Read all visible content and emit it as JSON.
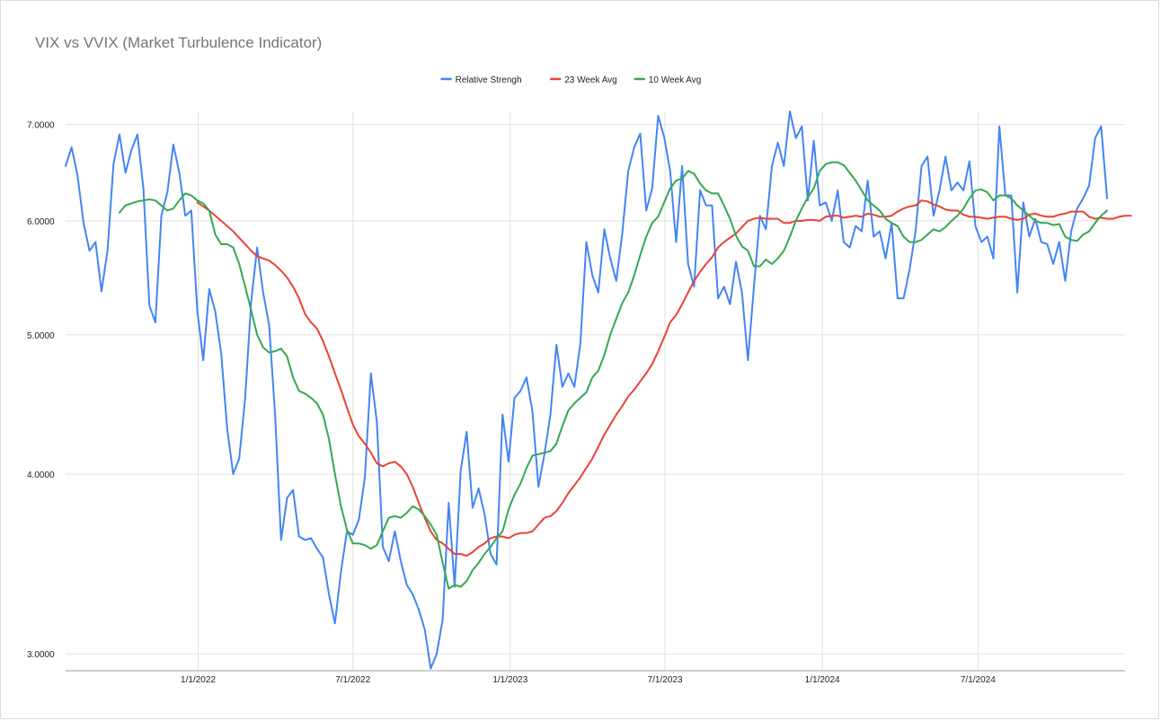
{
  "chart_data": {
    "type": "line",
    "title": "VIX vs VVIX (Market Turbulence Indicator)",
    "xlabel": "",
    "ylabel": "",
    "y_scale": "log",
    "ylim": [
      2.92,
      7.15
    ],
    "y_ticks": [
      {
        "value": 3.0,
        "label": "3.0000"
      },
      {
        "value": 4.0,
        "label": "4.0000"
      },
      {
        "value": 5.0,
        "label": "5.0000"
      },
      {
        "value": 6.0,
        "label": "6.0000"
      },
      {
        "value": 7.0,
        "label": "7.0000"
      }
    ],
    "x_ticks": [
      {
        "date": "2022-01-01",
        "label": "1/1/2022"
      },
      {
        "date": "2022-07-01",
        "label": "7/1/2022"
      },
      {
        "date": "2023-01-01",
        "label": "1/1/2023"
      },
      {
        "date": "2023-07-01",
        "label": "7/1/2023"
      },
      {
        "date": "2024-01-01",
        "label": "1/1/2024"
      },
      {
        "date": "2024-07-01",
        "label": "7/1/2024"
      }
    ],
    "x_range": [
      "2021-07-30",
      "2024-12-20"
    ],
    "grid": true,
    "legend_position": "top",
    "series": [
      {
        "name": "Relative Strengh",
        "color": "#4285f4",
        "start_date": "2021-07-30",
        "values": [
          6.55,
          6.75,
          6.45,
          5.98,
          5.72,
          5.8,
          5.36,
          5.72,
          6.57,
          6.89,
          6.48,
          6.72,
          6.89,
          6.32,
          5.24,
          5.1,
          6.05,
          6.28,
          6.78,
          6.48,
          6.05,
          6.1,
          5.2,
          4.8,
          5.38,
          5.19,
          4.85,
          4.3,
          4.0,
          4.1,
          4.52,
          5.27,
          5.75,
          5.35,
          5.08,
          4.4,
          3.6,
          3.85,
          3.9,
          3.62,
          3.6,
          3.61,
          3.55,
          3.5,
          3.3,
          3.15,
          3.42,
          3.65,
          3.63,
          3.72,
          3.98,
          4.7,
          4.35,
          3.56,
          3.48,
          3.65,
          3.48,
          3.35,
          3.3,
          3.22,
          3.12,
          2.93,
          3.0,
          3.17,
          3.82,
          3.34,
          4.02,
          4.28,
          3.79,
          3.91,
          3.75,
          3.52,
          3.46,
          4.4,
          4.08,
          4.52,
          4.57,
          4.67,
          4.42,
          3.92,
          4.13,
          4.4,
          4.92,
          4.6,
          4.7,
          4.6,
          4.93,
          5.8,
          5.5,
          5.35,
          5.92,
          5.65,
          5.45,
          5.88,
          6.5,
          6.75,
          6.9,
          6.1,
          6.32,
          7.1,
          6.86,
          6.5,
          5.8,
          6.55,
          5.6,
          5.4,
          6.3,
          6.15,
          6.15,
          5.3,
          5.4,
          5.25,
          5.62,
          5.35,
          4.8,
          5.4,
          6.05,
          5.92,
          6.55,
          6.8,
          6.55,
          7.15,
          6.85,
          6.98,
          6.2,
          6.82,
          6.15,
          6.18,
          6.0,
          6.3,
          5.8,
          5.75,
          5.95,
          5.9,
          6.4,
          5.85,
          5.9,
          5.65,
          5.98,
          5.3,
          5.3,
          5.55,
          5.9,
          6.55,
          6.65,
          6.05,
          6.3,
          6.65,
          6.3,
          6.38,
          6.3,
          6.6,
          5.95,
          5.8,
          5.85,
          5.65,
          6.98,
          6.25,
          6.25,
          5.35,
          6.18,
          5.85,
          6.02,
          5.8,
          5.78,
          5.6,
          5.8,
          5.45,
          5.9,
          6.12,
          6.22,
          6.35,
          6.85,
          6.98,
          6.22
        ]
      },
      {
        "name": "23 Week Avg",
        "color": "#ea4335",
        "start_date": "2021-12-31",
        "values": [
          6.18,
          6.14,
          6.1,
          6.05,
          6.0,
          5.95,
          5.9,
          5.84,
          5.78,
          5.72,
          5.67,
          5.65,
          5.63,
          5.59,
          5.54,
          5.48,
          5.4,
          5.3,
          5.17,
          5.1,
          5.05,
          4.95,
          4.83,
          4.7,
          4.58,
          4.45,
          4.33,
          4.25,
          4.2,
          4.14,
          4.07,
          4.05,
          4.07,
          4.08,
          4.05,
          4.0,
          3.92,
          3.82,
          3.73,
          3.65,
          3.6,
          3.58,
          3.55,
          3.52,
          3.52,
          3.51,
          3.53,
          3.56,
          3.58,
          3.61,
          3.62,
          3.62,
          3.61,
          3.63,
          3.64,
          3.64,
          3.65,
          3.69,
          3.73,
          3.74,
          3.77,
          3.82,
          3.88,
          3.93,
          3.98,
          4.04,
          4.1,
          4.18,
          4.26,
          4.33,
          4.4,
          4.46,
          4.53,
          4.58,
          4.64,
          4.7,
          4.77,
          4.87,
          4.98,
          5.1,
          5.16,
          5.25,
          5.35,
          5.45,
          5.53,
          5.6,
          5.66,
          5.75,
          5.8,
          5.84,
          5.88,
          5.94,
          6.0,
          6.02,
          6.03,
          6.02,
          6.02,
          6.02,
          5.98,
          5.98,
          6.0,
          6.0,
          6.01,
          6.01,
          6.0,
          6.04,
          6.05,
          6.05,
          6.03,
          6.04,
          6.05,
          6.04,
          6.07,
          6.06,
          6.04,
          6.04,
          6.05,
          6.09,
          6.12,
          6.14,
          6.15,
          6.2,
          6.19,
          6.16,
          6.14,
          6.11,
          6.1,
          6.1,
          6.06,
          6.04,
          6.04,
          6.03,
          6.02,
          6.03,
          6.04,
          6.04,
          6.02,
          6.01,
          6.02,
          6.06,
          6.07,
          6.05,
          6.04,
          6.04,
          6.06,
          6.07,
          6.09,
          6.09,
          6.09,
          6.04,
          6.02,
          6.03,
          6.02,
          6.02,
          6.04,
          6.05,
          6.05
        ]
      },
      {
        "name": "10 Week Avg",
        "color": "#34a853",
        "start_date": "2021-10-01",
        "values": [
          6.08,
          6.15,
          6.17,
          6.19,
          6.2,
          6.21,
          6.2,
          6.15,
          6.1,
          6.12,
          6.2,
          6.27,
          6.25,
          6.2,
          6.17,
          6.1,
          5.87,
          5.78,
          5.78,
          5.75,
          5.6,
          5.4,
          5.2,
          5.0,
          4.9,
          4.86,
          4.87,
          4.89,
          4.83,
          4.67,
          4.57,
          4.55,
          4.52,
          4.48,
          4.4,
          4.23,
          4.0,
          3.8,
          3.66,
          3.58,
          3.58,
          3.57,
          3.55,
          3.57,
          3.65,
          3.73,
          3.74,
          3.73,
          3.76,
          3.8,
          3.78,
          3.74,
          3.69,
          3.63,
          3.47,
          3.33,
          3.35,
          3.34,
          3.37,
          3.43,
          3.47,
          3.52,
          3.56,
          3.61,
          3.65,
          3.78,
          3.87,
          3.94,
          4.04,
          4.12,
          4.13,
          4.14,
          4.15,
          4.2,
          4.32,
          4.43,
          4.48,
          4.52,
          4.56,
          4.67,
          4.72,
          4.84,
          5.0,
          5.13,
          5.26,
          5.35,
          5.5,
          5.68,
          5.85,
          5.98,
          6.04,
          6.18,
          6.32,
          6.4,
          6.42,
          6.5,
          6.47,
          6.37,
          6.3,
          6.27,
          6.27,
          6.15,
          6.02,
          5.86,
          5.76,
          5.72,
          5.58,
          5.58,
          5.64,
          5.6,
          5.65,
          5.72,
          5.85,
          6.0,
          6.12,
          6.23,
          6.32,
          6.5,
          6.57,
          6.59,
          6.59,
          6.56,
          6.48,
          6.4,
          6.3,
          6.2,
          6.15,
          6.1,
          6.02,
          5.98,
          5.95,
          5.85,
          5.8,
          5.8,
          5.82,
          5.87,
          5.92,
          5.9,
          5.94,
          6.0,
          6.05,
          6.12,
          6.22,
          6.3,
          6.31,
          6.28,
          6.2,
          6.25,
          6.25,
          6.22,
          6.15,
          6.1,
          6.05,
          6.0,
          5.98,
          5.98,
          5.96,
          5.97,
          5.85,
          5.82,
          5.81,
          5.87,
          5.9,
          5.98,
          6.05,
          6.1
        ]
      }
    ]
  }
}
